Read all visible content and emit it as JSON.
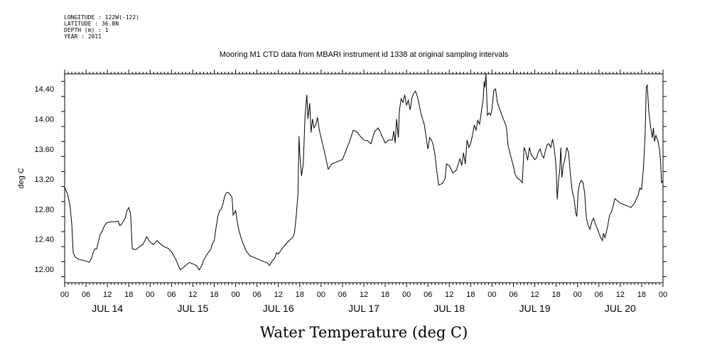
{
  "header": {
    "longitude": "LONGITUDE : 122W(-122)",
    "latitude": "LATITUDE : 36.8N",
    "depth": "DEPTH (m) : 1",
    "year": "YEAR : 2011"
  },
  "chart_data": {
    "type": "line",
    "title": "Mooring M1 CTD data from MBARI instrument id 1338 at original sampling intervals",
    "caption": "Water Temperature (deg C)",
    "ylabel": "deg C",
    "xlabel": "",
    "ylim": [
      11.82,
      14.6
    ],
    "xlim": [
      0,
      168
    ],
    "grid": false,
    "y_ticks": [
      12.0,
      12.4,
      12.8,
      13.2,
      13.6,
      14.0,
      14.4
    ],
    "y_tick_labels": [
      "12.00",
      "12.40",
      "12.80",
      "13.20",
      "13.60",
      "14.00",
      "14.40"
    ],
    "x_tick_hours": [
      0,
      6,
      12,
      18,
      24,
      30,
      36,
      42,
      48,
      54,
      60,
      66,
      72,
      78,
      84,
      90,
      96,
      102,
      108,
      114,
      120,
      126,
      132,
      138,
      144,
      150,
      156,
      162,
      168
    ],
    "x_tick_labels": [
      "00",
      "06",
      "12",
      "18",
      "00",
      "06",
      "12",
      "18",
      "00",
      "06",
      "12",
      "18",
      "00",
      "06",
      "12",
      "18",
      "00",
      "06",
      "12",
      "18",
      "00",
      "06",
      "12",
      "18",
      "00",
      "06",
      "12",
      "18",
      "00"
    ],
    "day_labels": [
      {
        "label": "JUL 14",
        "hour": 12
      },
      {
        "label": "JUL 15",
        "hour": 36
      },
      {
        "label": "JUL 16",
        "hour": 60
      },
      {
        "label": "JUL 17",
        "hour": 84
      },
      {
        "label": "JUL 18",
        "hour": 108
      },
      {
        "label": "JUL 19",
        "hour": 132
      },
      {
        "label": "JUL 20",
        "hour": 156
      }
    ],
    "series": [
      {
        "x_unit": "hours since 2011-07-14 00:00",
        "points": [
          [
            0,
            13.09
          ],
          [
            0.8,
            13.0
          ],
          [
            1.5,
            12.85
          ],
          [
            2,
            12.6
          ],
          [
            2.4,
            12.22
          ],
          [
            3,
            12.16
          ],
          [
            4,
            12.13
          ],
          [
            5,
            12.12
          ],
          [
            6,
            12.11
          ],
          [
            6.8,
            12.09
          ],
          [
            7.5,
            12.14
          ],
          [
            8,
            12.22
          ],
          [
            8.5,
            12.27
          ],
          [
            9,
            12.27
          ],
          [
            9.5,
            12.37
          ],
          [
            10,
            12.47
          ],
          [
            10.5,
            12.5
          ],
          [
            11,
            12.56
          ],
          [
            11.5,
            12.6
          ],
          [
            12,
            12.62
          ],
          [
            13,
            12.63
          ],
          [
            14,
            12.63
          ],
          [
            15,
            12.64
          ],
          [
            15.5,
            12.58
          ],
          [
            16,
            12.6
          ],
          [
            17,
            12.68
          ],
          [
            17.5,
            12.78
          ],
          [
            18,
            12.82
          ],
          [
            18.5,
            12.74
          ],
          [
            19,
            12.27
          ],
          [
            20,
            12.26
          ],
          [
            21,
            12.3
          ],
          [
            22,
            12.33
          ],
          [
            23,
            12.43
          ],
          [
            24,
            12.36
          ],
          [
            25,
            12.33
          ],
          [
            26,
            12.38
          ],
          [
            27,
            12.33
          ],
          [
            27.8,
            12.3
          ],
          [
            29,
            12.28
          ],
          [
            30,
            12.23
          ],
          [
            31,
            12.15
          ],
          [
            32,
            12.04
          ],
          [
            32.5,
            11.99
          ],
          [
            33,
            12.01
          ],
          [
            34,
            12.05
          ],
          [
            35,
            12.09
          ],
          [
            36,
            12.07
          ],
          [
            37,
            12.05
          ],
          [
            37.8,
            11.99
          ],
          [
            38.5,
            12.05
          ],
          [
            39,
            12.12
          ],
          [
            40,
            12.2
          ],
          [
            41,
            12.26
          ],
          [
            41.5,
            12.34
          ],
          [
            42,
            12.38
          ],
          [
            42.5,
            12.55
          ],
          [
            43,
            12.7
          ],
          [
            43.5,
            12.78
          ],
          [
            44,
            12.8
          ],
          [
            44.5,
            12.88
          ],
          [
            45,
            12.98
          ],
          [
            45.5,
            13.02
          ],
          [
            46,
            13.02
          ],
          [
            46.5,
            12.99
          ],
          [
            47,
            12.95
          ],
          [
            47.3,
            12.72
          ],
          [
            48,
            12.78
          ],
          [
            48.5,
            12.62
          ],
          [
            49,
            12.5
          ],
          [
            50,
            12.35
          ],
          [
            51,
            12.24
          ],
          [
            52,
            12.18
          ],
          [
            53,
            12.16
          ],
          [
            54,
            12.14
          ],
          [
            55,
            12.12
          ],
          [
            56,
            12.1
          ],
          [
            57,
            12.08
          ],
          [
            57.5,
            12.05
          ],
          [
            58,
            12.09
          ],
          [
            59,
            12.15
          ],
          [
            59.5,
            12.22
          ],
          [
            60,
            12.2
          ],
          [
            61,
            12.27
          ],
          [
            62,
            12.33
          ],
          [
            63,
            12.38
          ],
          [
            64,
            12.42
          ],
          [
            64.5,
            12.48
          ],
          [
            65,
            12.7
          ],
          [
            65.5,
            13.0
          ],
          [
            65.8,
            13.77
          ],
          [
            66,
            13.55
          ],
          [
            66.5,
            13.24
          ],
          [
            67,
            13.4
          ],
          [
            67.5,
            14.05
          ],
          [
            68,
            14.32
          ],
          [
            68.3,
            14.0
          ],
          [
            68.8,
            14.21
          ],
          [
            69.2,
            13.82
          ],
          [
            69.6,
            14.0
          ],
          [
            70,
            13.88
          ],
          [
            70.5,
            13.92
          ],
          [
            71,
            14.02
          ],
          [
            71.5,
            13.85
          ],
          [
            72,
            13.75
          ],
          [
            73,
            13.55
          ],
          [
            74,
            13.33
          ],
          [
            75,
            13.4
          ],
          [
            76,
            13.42
          ],
          [
            77,
            13.44
          ],
          [
            78,
            13.46
          ],
          [
            79,
            13.58
          ],
          [
            80,
            13.7
          ],
          [
            81,
            13.85
          ],
          [
            82,
            13.83
          ],
          [
            83,
            13.77
          ],
          [
            84,
            13.72
          ],
          [
            85,
            13.71
          ],
          [
            86,
            13.67
          ],
          [
            87,
            13.83
          ],
          [
            88,
            13.88
          ],
          [
            88.7,
            13.82
          ],
          [
            89,
            13.78
          ],
          [
            90,
            13.68
          ],
          [
            91,
            13.72
          ],
          [
            92,
            13.72
          ],
          [
            92.4,
            13.84
          ],
          [
            92.8,
            13.68
          ],
          [
            93.2,
            14.0
          ],
          [
            93.7,
            13.75
          ],
          [
            94,
            14.12
          ],
          [
            94.5,
            14.27
          ],
          [
            95,
            14.22
          ],
          [
            95.5,
            14.32
          ],
          [
            96,
            14.18
          ],
          [
            96.5,
            14.25
          ],
          [
            97,
            14.12
          ],
          [
            97.5,
            14.28
          ],
          [
            98,
            14.34
          ],
          [
            98.5,
            14.37
          ],
          [
            99,
            14.3
          ],
          [
            99.5,
            14.2
          ],
          [
            100,
            14.08
          ],
          [
            101,
            13.92
          ],
          [
            101.8,
            13.66
          ],
          [
            102,
            13.6
          ],
          [
            102.5,
            13.75
          ],
          [
            103,
            13.72
          ],
          [
            103.5,
            13.65
          ],
          [
            104,
            13.52
          ],
          [
            104.5,
            13.3
          ],
          [
            105,
            13.12
          ],
          [
            106,
            13.14
          ],
          [
            106.8,
            13.2
          ],
          [
            107.2,
            13.4
          ],
          [
            108,
            13.38
          ],
          [
            109,
            13.28
          ],
          [
            110,
            13.32
          ],
          [
            111,
            13.47
          ],
          [
            111.5,
            13.38
          ],
          [
            112,
            13.55
          ],
          [
            112.5,
            13.4
          ],
          [
            113,
            13.72
          ],
          [
            113.5,
            13.62
          ],
          [
            114,
            13.68
          ],
          [
            114.5,
            13.78
          ],
          [
            115,
            13.92
          ],
          [
            115.5,
            13.85
          ],
          [
            116,
            13.98
          ],
          [
            116.5,
            13.93
          ],
          [
            117,
            14.1
          ],
          [
            117.5,
            14.25
          ],
          [
            117.8,
            14.5
          ],
          [
            118,
            14.42
          ],
          [
            118.3,
            14.6
          ],
          [
            118.7,
            14.05
          ],
          [
            119.2,
            14.08
          ],
          [
            119.6,
            14.05
          ],
          [
            120,
            14.13
          ],
          [
            120.5,
            14.38
          ],
          [
            121,
            14.4
          ],
          [
            121.5,
            14.22
          ],
          [
            122,
            14.15
          ],
          [
            123,
            14.02
          ],
          [
            124,
            13.9
          ],
          [
            124.5,
            13.65
          ],
          [
            125,
            13.55
          ],
          [
            126,
            13.37
          ],
          [
            126.5,
            13.26
          ],
          [
            127,
            13.22
          ],
          [
            128,
            13.18
          ],
          [
            128.5,
            13.15
          ],
          [
            129,
            13.62
          ],
          [
            129.5,
            13.56
          ],
          [
            130,
            13.45
          ],
          [
            130.5,
            13.62
          ],
          [
            131,
            13.52
          ],
          [
            132,
            13.46
          ],
          [
            132.5,
            13.48
          ],
          [
            133,
            13.56
          ],
          [
            133.5,
            13.6
          ],
          [
            134,
            13.52
          ],
          [
            134.5,
            13.48
          ],
          [
            135,
            13.58
          ],
          [
            135.5,
            13.66
          ],
          [
            136,
            13.67
          ],
          [
            136.5,
            13.62
          ],
          [
            137,
            13.73
          ],
          [
            137.5,
            13.6
          ],
          [
            138,
            13.36
          ],
          [
            138.3,
            12.93
          ],
          [
            138.7,
            13.2
          ],
          [
            139,
            13.32
          ],
          [
            139.3,
            13.62
          ],
          [
            139.6,
            13.22
          ],
          [
            140,
            13.38
          ],
          [
            140.5,
            13.48
          ],
          [
            141,
            13.62
          ],
          [
            141.5,
            13.55
          ],
          [
            142,
            13.26
          ],
          [
            142.5,
            13.04
          ],
          [
            143,
            12.95
          ],
          [
            143.5,
            12.75
          ],
          [
            143.8,
            12.7
          ],
          [
            144.2,
            13.04
          ],
          [
            144.6,
            13.14
          ],
          [
            145,
            13.18
          ],
          [
            145.5,
            13.16
          ],
          [
            146,
            13.02
          ],
          [
            146.5,
            12.68
          ],
          [
            147,
            12.58
          ],
          [
            147.5,
            12.53
          ],
          [
            148,
            12.63
          ],
          [
            148.5,
            12.68
          ],
          [
            149,
            12.6
          ],
          [
            149.5,
            12.55
          ],
          [
            150,
            12.48
          ],
          [
            150.5,
            12.42
          ],
          [
            151,
            12.38
          ],
          [
            151.3,
            12.48
          ],
          [
            151.7,
            12.42
          ],
          [
            152,
            12.47
          ],
          [
            152.5,
            12.58
          ],
          [
            153,
            12.72
          ],
          [
            153.5,
            12.76
          ],
          [
            154,
            12.84
          ],
          [
            154.5,
            12.94
          ],
          [
            155,
            12.92
          ],
          [
            156,
            12.88
          ],
          [
            157,
            12.86
          ],
          [
            158,
            12.84
          ],
          [
            159,
            12.82
          ],
          [
            160,
            12.88
          ],
          [
            161,
            12.98
          ],
          [
            161.5,
            13.08
          ],
          [
            162,
            13.06
          ],
          [
            162.5,
            13.34
          ],
          [
            163,
            13.8
          ],
          [
            163.3,
            14.42
          ],
          [
            163.6,
            14.45
          ],
          [
            164,
            14.1
          ],
          [
            164.5,
            13.9
          ],
          [
            165,
            13.75
          ],
          [
            165.3,
            13.88
          ],
          [
            165.6,
            13.7
          ],
          [
            166,
            13.78
          ],
          [
            166.5,
            13.72
          ],
          [
            167,
            13.6
          ],
          [
            167.3,
            13.45
          ],
          [
            167.6,
            13.15
          ],
          [
            168,
            13.18
          ]
        ]
      }
    ]
  }
}
